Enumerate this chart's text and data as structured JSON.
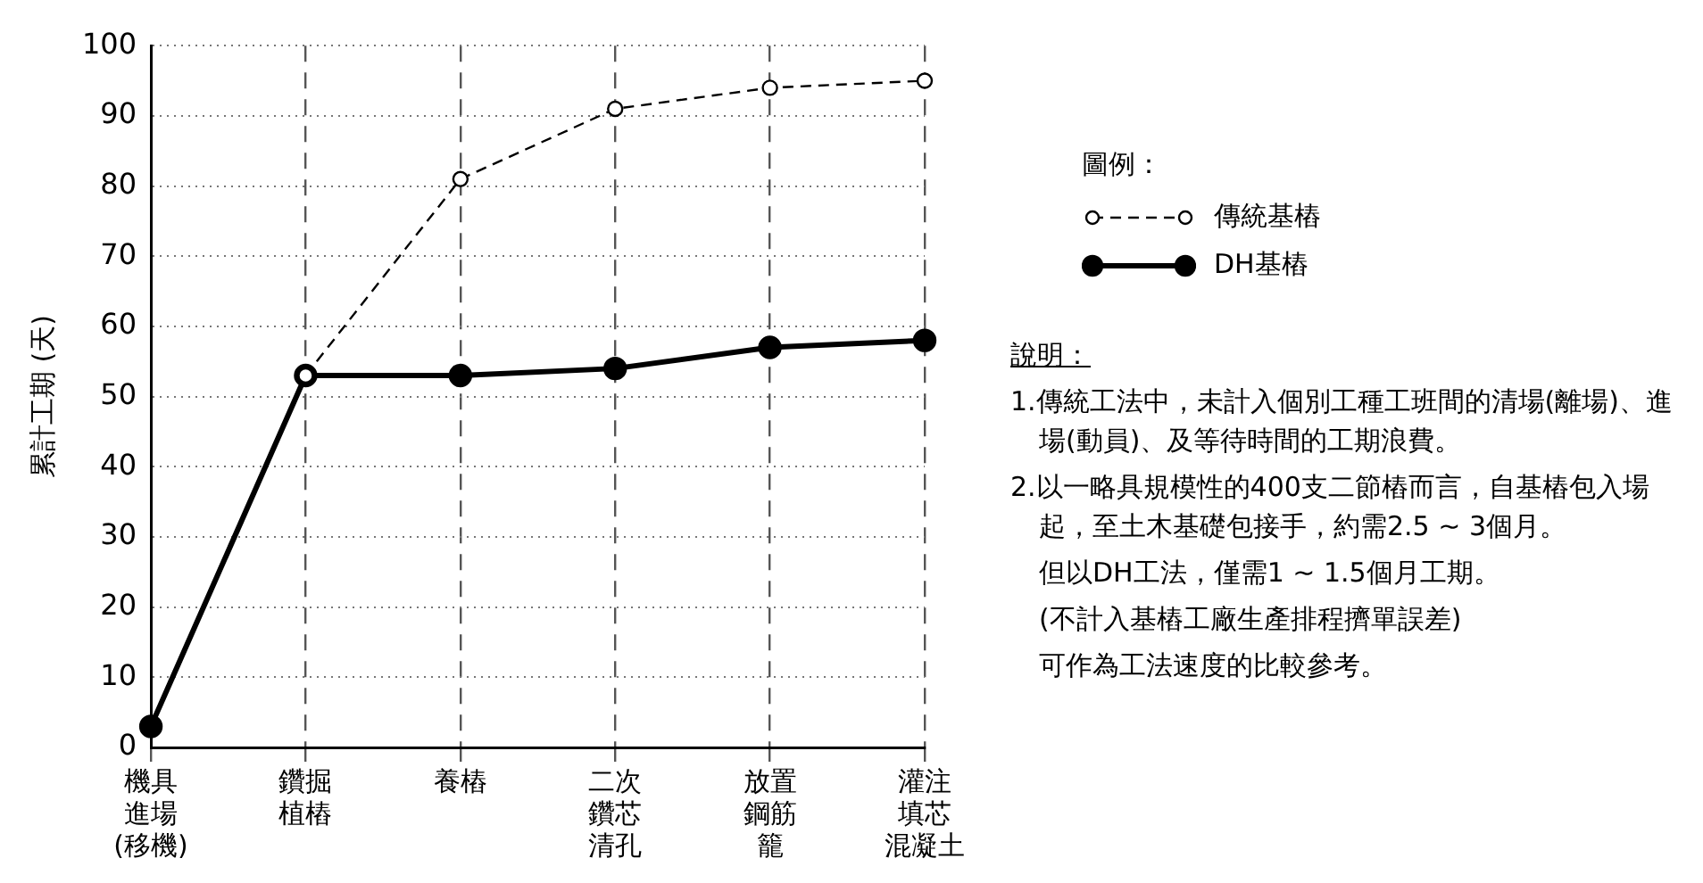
{
  "chart_data": {
    "type": "line",
    "ylabel": "累計工期 (天)",
    "legend_title": "圖例：",
    "legend": "right",
    "grid": true,
    "marker": "circle",
    "categories": [
      "機具進場(移機)",
      "鑽掘植樁",
      "養樁",
      "二次鑽芯清孔",
      "放置鋼筋籠",
      "灌注填芯混凝土"
    ],
    "ylim": [
      0,
      100
    ],
    "yticks": [
      0,
      10,
      20,
      30,
      40,
      50,
      60,
      70,
      80,
      90,
      100
    ],
    "series": [
      {
        "name": "傳統基樁",
        "color": "#000000",
        "line_style": "dashed",
        "values": [
          null,
          53,
          81,
          91,
          94,
          95
        ]
      },
      {
        "name": "DH基樁",
        "color": "#000000",
        "line_style": "solid",
        "values": [
          3,
          53,
          53,
          54,
          57,
          58
        ]
      }
    ],
    "annotations": [
      "說明：",
      "1.傳統工法中，未計入個別工種工班間的清場(離場)、進場(動員)、及等待時間的工期浪費。",
      "2.以一略具規模性的400支二節樁而言，自基樁包入場起，至土木基礎包接手，約需2.5 ~ 3個月。",
      "但以DH工法，僅需1 ~ 1.5個月工期。",
      "(不計入基樁工廠生產排程擠單誤差)",
      "可作為工法速度的比較參考。"
    ]
  }
}
